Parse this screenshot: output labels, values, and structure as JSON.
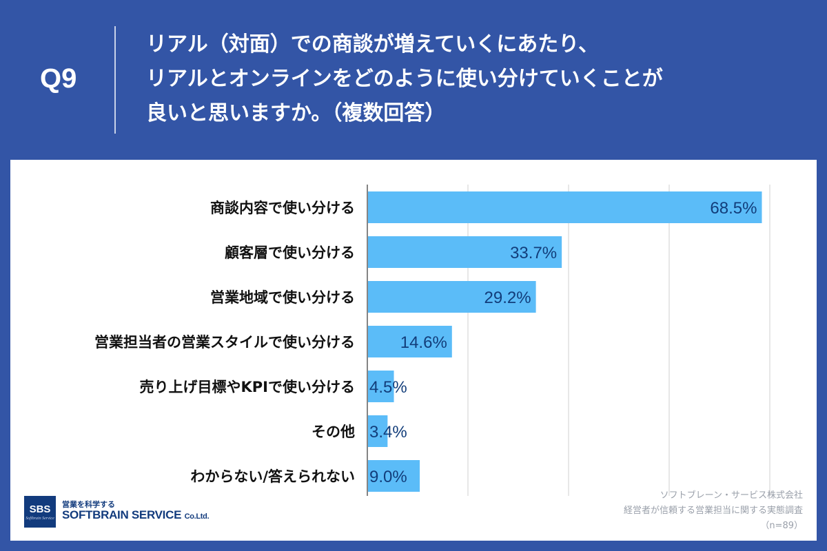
{
  "header": {
    "qnum": "Q9",
    "question_lines": [
      "リアル（対面）での商談が増えていくにあたり、",
      "リアルとオンラインをどのように使い分けていくことが",
      "良いと思いますか。（複数回答）"
    ]
  },
  "chart_data": {
    "type": "bar",
    "orientation": "horizontal",
    "categories": [
      "商談内容で使い分ける",
      "顧客層で使い分ける",
      "営業地域で使い分ける",
      "営業担当者の営業スタイルで使い分ける",
      "売り上げ目標やKPIで使い分ける",
      "その他",
      "わからない/答えられない"
    ],
    "values": [
      68.5,
      33.7,
      29.2,
      14.6,
      4.5,
      3.4,
      9.0
    ],
    "value_labels": [
      "68.5%",
      "33.7%",
      "29.2%",
      "14.6%",
      "4.5%",
      "3.4%",
      "9.0%"
    ],
    "xlim": [
      0,
      70
    ],
    "grid": true,
    "bar_color": "#5bbcf8",
    "label_color": "#123d7a"
  },
  "source": {
    "company": "ソフトブレーン・サービス株式会社",
    "survey": "経営者が信頼する営業担当に関する実態調査",
    "n": "（n=89）"
  },
  "logo": {
    "mark": "SBS",
    "mark_sub": "Softbrain Service",
    "tagline": "営業を科学する",
    "name": "SOFTBRAIN SERVICE",
    "suffix": "Co.Ltd."
  },
  "colors": {
    "background": "#3355a6",
    "panel": "#ffffff",
    "bar": "#5bbcf8",
    "value_text": "#123d7a"
  }
}
